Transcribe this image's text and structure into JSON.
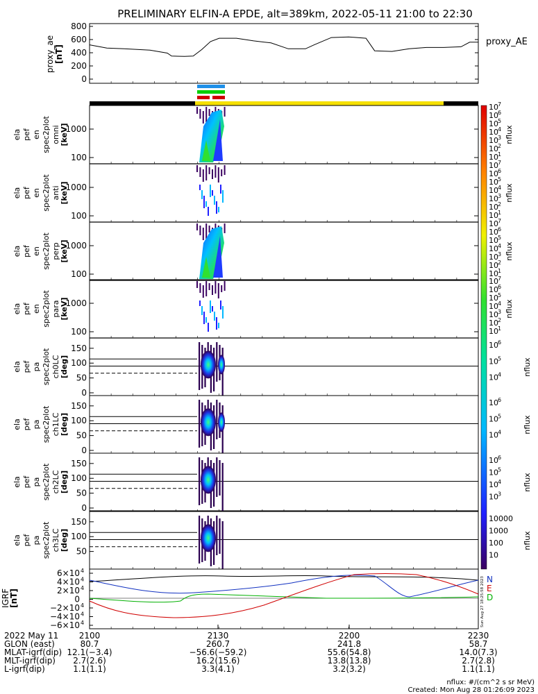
{
  "title": "PRELIMINARY ELFIN-A EPDE, alt=389km, 2022-05-11 21:00 to 22:30",
  "colors": {
    "black": "#000000",
    "yellow": "#f5e600",
    "blue": "#1f77e0",
    "green": "#00c800",
    "red": "#d00000"
  },
  "proxy_ae": {
    "ylabel": [
      "proxy_ae",
      "[nT]"
    ],
    "ticks": [
      "800",
      "600",
      "400",
      "200",
      "0"
    ],
    "legend": "proxy_AE",
    "series": [
      [
        0,
        520
      ],
      [
        4,
        470
      ],
      [
        8,
        460
      ],
      [
        14,
        440
      ],
      [
        18,
        395
      ],
      [
        19,
        350
      ],
      [
        22,
        345
      ],
      [
        24,
        350
      ],
      [
        26,
        450
      ],
      [
        28,
        570
      ],
      [
        30,
        620
      ],
      [
        34,
        620
      ],
      [
        38,
        580
      ],
      [
        42,
        550
      ],
      [
        46,
        460
      ],
      [
        50,
        460
      ],
      [
        52,
        520
      ],
      [
        56,
        630
      ],
      [
        60,
        640
      ],
      [
        64,
        620
      ],
      [
        66,
        430
      ],
      [
        70,
        420
      ],
      [
        74,
        460
      ],
      [
        78,
        480
      ],
      [
        82,
        480
      ],
      [
        86,
        490
      ],
      [
        88,
        560
      ],
      [
        90,
        560
      ]
    ]
  },
  "spec_panels": [
    {
      "labels": [
        "ela",
        "pef",
        "en",
        "spec2plot",
        "omni",
        "[keV]"
      ],
      "ticks": [
        "1000",
        "100"
      ],
      "cbar_ticks": [
        "10",
        "10",
        "10",
        "10",
        "10",
        "10",
        "10"
      ],
      "cbar_exp": [
        "7",
        "6",
        "5",
        "4",
        "3",
        "2",
        "1"
      ]
    },
    {
      "labels": [
        "ela",
        "pef",
        "en",
        "spec2plot",
        "anti",
        "[keV]"
      ],
      "ticks": [
        "1000",
        "100"
      ],
      "cbar_ticks": [
        "10",
        "10",
        "10",
        "10",
        "10",
        "10",
        "10"
      ],
      "cbar_exp": [
        "7",
        "6",
        "5",
        "4",
        "3",
        "2",
        "1"
      ]
    },
    {
      "labels": [
        "ela",
        "pef",
        "en",
        "spec2plot",
        "perp",
        "[keV]"
      ],
      "ticks": [
        "1000",
        "100"
      ],
      "cbar_ticks": [
        "10",
        "10",
        "10",
        "10",
        "10",
        "10",
        "10"
      ],
      "cbar_exp": [
        "7",
        "6",
        "5",
        "4",
        "3",
        "2",
        "1"
      ]
    },
    {
      "labels": [
        "ela",
        "pef",
        "en",
        "spec2plot",
        "para",
        "[keV]"
      ],
      "ticks": [
        "1000",
        "100"
      ],
      "cbar_ticks": [
        "10",
        "10",
        "10",
        "10",
        "10",
        "10",
        "10"
      ],
      "cbar_exp": [
        "7",
        "6",
        "5",
        "4",
        "3",
        "2",
        "1"
      ]
    }
  ],
  "pa_panels": [
    {
      "labels": [
        "ela",
        "pef",
        "pa",
        "spec2plot",
        "ch0LC",
        "[deg]"
      ],
      "ticks": [
        "150",
        "100",
        "50",
        "0"
      ],
      "cbar": [
        "10",
        "10",
        "10"
      ],
      "cbar_exp": [
        "6",
        "5",
        "4"
      ]
    },
    {
      "labels": [
        "ela",
        "pef",
        "pa",
        "spec2plot",
        "ch1LC",
        "[deg]"
      ],
      "ticks": [
        "150",
        "100",
        "50",
        "0"
      ],
      "cbar": [
        "10",
        "10",
        "10"
      ],
      "cbar_exp": [
        "6",
        "5",
        "4"
      ]
    },
    {
      "labels": [
        "ela",
        "pef",
        "pa",
        "spec2plot",
        "ch2LC",
        "[deg]"
      ],
      "ticks": [
        "150",
        "100",
        "50",
        "0"
      ],
      "cbar": [
        "10",
        "10",
        "10",
        "10"
      ],
      "cbar_exp": [
        "6",
        "5",
        "4",
        "3"
      ]
    },
    {
      "labels": [
        "ela",
        "pef",
        "pa",
        "spec2plot",
        "ch3LC",
        "[deg]"
      ],
      "ticks": [
        "150",
        "100",
        "50"
      ],
      "cbar": [
        "10000",
        "1000",
        "100",
        "10"
      ],
      "cbar_exp": [
        "",
        "",
        "",
        ""
      ]
    }
  ],
  "nflux_label": "nflux",
  "igrf": {
    "ylabel": [
      "IGRF",
      "[nT]"
    ],
    "ticks": [
      {
        "m": "6",
        "e": "4"
      },
      {
        "m": "4",
        "e": "4"
      },
      {
        "m": "2",
        "e": "4"
      },
      {
        "m": "0",
        "e": ""
      },
      {
        "m": "−2",
        "e": "4"
      },
      {
        "m": "−4",
        "e": "4"
      },
      {
        "m": "−6",
        "e": "4"
      }
    ],
    "legend": [
      "N",
      "E",
      "D"
    ],
    "side_text": "Sun Aug 27 18:25:58 2023"
  },
  "xaxis": {
    "row_labels": [
      "2022 May 11",
      "GLON (east)",
      "MLAT-igrf(dip)",
      "MLT-igrf(dip)",
      "L-igrf(dip)"
    ],
    "columns": [
      {
        "time": "2100",
        "vals": [
          "80.7",
          "12.1(−3.4)",
          "2.7(2.6)",
          "1.1(1.1)"
        ]
      },
      {
        "time": "2130",
        "vals": [
          "260.7",
          "−56.6(−59.2)",
          "16.2(15.6)",
          "3.3(4.1)"
        ]
      },
      {
        "time": "2200",
        "vals": [
          "241.8",
          "55.6(54.8)",
          "13.8(13.8)",
          "3.2(3.2)"
        ]
      },
      {
        "time": "2230",
        "vals": [
          "58.7",
          "14.0(7.3)",
          "2.7(2.8)",
          "1.1(1.1)"
        ]
      }
    ]
  },
  "footer": [
    "nflux: #/(cm^2 s sr MeV)",
    "Created: Mon Aug 28 01:26:09 2023"
  ],
  "chart_data": {
    "type": "line",
    "title": "PRELIMINARY ELFIN-A EPDE, alt=389km, 2022-05-11 21:00 to 22:30",
    "x_unit_ticks": [
      "2100",
      "2130",
      "2200",
      "2230"
    ],
    "series": [
      {
        "name": "proxy_AE",
        "values_nT": [
          520,
          470,
          460,
          440,
          395,
          350,
          345,
          350,
          450,
          570,
          620,
          620,
          580,
          550,
          460,
          460,
          520,
          630,
          640,
          620,
          430,
          420,
          460,
          480,
          480,
          490,
          560,
          560
        ]
      }
    ],
    "ylim_proxy_ae": [
      0,
      800
    ]
  }
}
